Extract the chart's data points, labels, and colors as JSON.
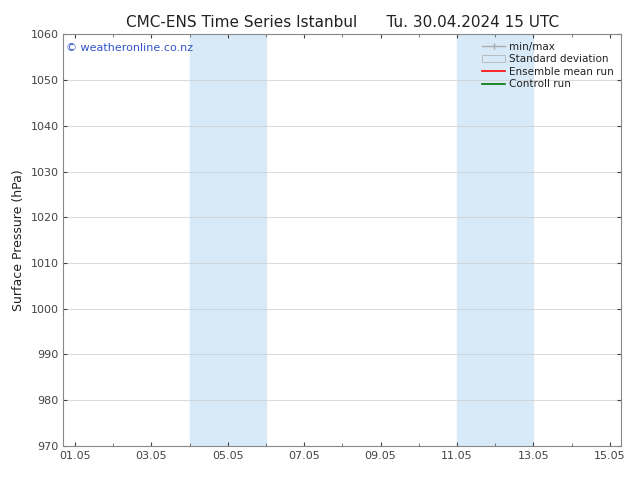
{
  "title_left": "CMC-ENS Time Series Istanbul",
  "title_right": "Tu. 30.04.2024 15 UTC",
  "ylabel": "Surface Pressure (hPa)",
  "ylim": [
    970,
    1060
  ],
  "yticks": [
    970,
    980,
    990,
    1000,
    1010,
    1020,
    1030,
    1040,
    1050,
    1060
  ],
  "xmin_day": 1,
  "xmax_day": 15,
  "xtick_days": [
    1,
    3,
    5,
    7,
    9,
    11,
    13,
    15
  ],
  "xtick_labels": [
    "01.05",
    "03.05",
    "05.05",
    "07.05",
    "09.05",
    "11.05",
    "13.05",
    "15.05"
  ],
  "shaded_bands": [
    {
      "x_start": 4,
      "x_end": 6
    },
    {
      "x_start": 11,
      "x_end": 13
    }
  ],
  "shaded_color": "#d8eaf8",
  "background_color": "#ffffff",
  "watermark_text": "© weatheronline.co.nz",
  "watermark_color": "#3355cc",
  "watermark_fontsize": 8,
  "title_fontsize": 11,
  "ylabel_fontsize": 9,
  "tick_fontsize": 8,
  "legend_items": [
    {
      "label": "min/max",
      "color": "#aaaaaa",
      "lw": 1.0
    },
    {
      "label": "Standard deviation",
      "color": "#d8eaf8",
      "lw": 6
    },
    {
      "label": "Ensemble mean run",
      "color": "#ff0000",
      "lw": 1.2
    },
    {
      "label": "Controll run",
      "color": "#007700",
      "lw": 1.2
    }
  ],
  "legend_fontsize": 7.5,
  "grid_color": "#cccccc",
  "spine_color": "#888888",
  "tick_color": "#444444"
}
